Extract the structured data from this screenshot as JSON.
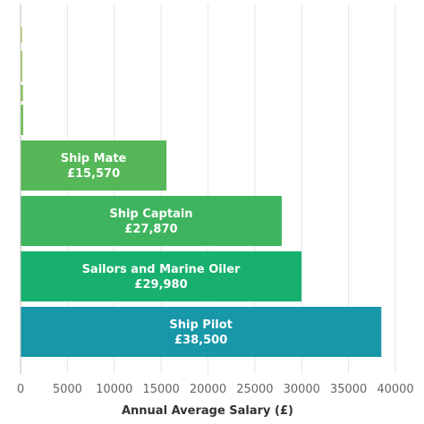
{
  "chart_data": {
    "type": "bar",
    "orientation": "horizontal",
    "title": "",
    "xlabel": "Annual Average Salary (£)",
    "ylabel": "",
    "xlim": [
      0,
      40000
    ],
    "xticks": [
      0,
      5000,
      10000,
      15000,
      20000,
      25000,
      30000,
      35000,
      40000
    ],
    "grid": true,
    "categories": [
      "",
      "",
      "",
      "",
      "Ship Mate",
      "Ship Captain",
      "Sailors and Marine Oiler",
      "Ship Pilot"
    ],
    "values": [
      150,
      180,
      250,
      280,
      15570,
      27870,
      29980,
      38500
    ],
    "value_labels": [
      "",
      "",
      "",
      "",
      "£15,570",
      "£27,870",
      "£29,980",
      "£38,500"
    ],
    "colors": [
      "#a6c84b",
      "#9ccb4f",
      "#80c351",
      "#6cbf53",
      "#55b757",
      "#3fb45f",
      "#17b06e",
      "#1797a8"
    ]
  }
}
